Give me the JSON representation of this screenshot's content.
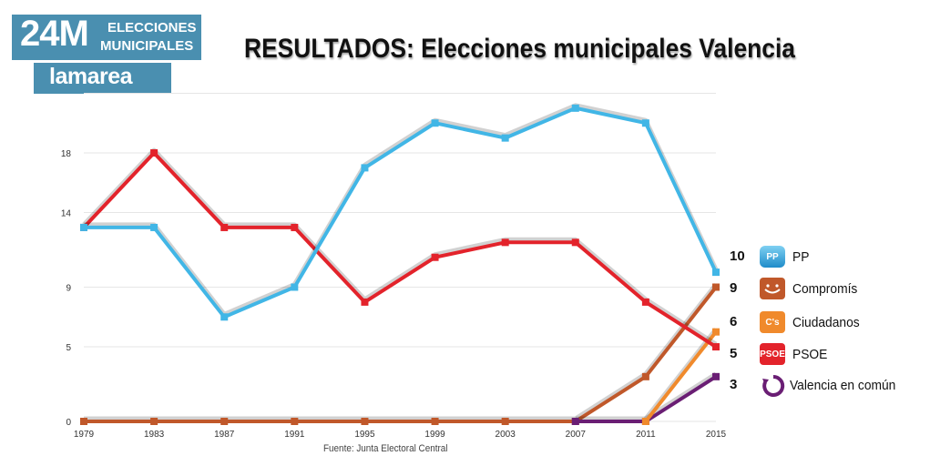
{
  "header": {
    "badge_main": "24M",
    "badge_line1": "ELECCIONES",
    "badge_line2": "MUNICIPALES",
    "brand": "lamarea",
    "title": "RESULTADOS: Elecciones municipales Valencia"
  },
  "source": "Fuente: Junta Electoral Central",
  "legend": [
    {
      "value": "10",
      "label": "PP",
      "logo_text": "PP",
      "color": "#41b6e6"
    },
    {
      "value": "9",
      "label": "Compromís",
      "logo_text": "",
      "color": "#c0582a"
    },
    {
      "value": "6",
      "label": "Ciudadanos",
      "logo_text": "C's",
      "color": "#f08a2c"
    },
    {
      "value": "5",
      "label": "PSOE",
      "logo_text": "PSOE",
      "color": "#e3232b"
    },
    {
      "value": "3",
      "label": "Valencia en común",
      "logo_text": "",
      "color": "#6a1e74"
    }
  ],
  "chart_data": {
    "type": "line",
    "title": "RESULTADOS: Elecciones municipales Valencia",
    "xlabel": "",
    "ylabel": "",
    "categories": [
      "1979",
      "1983",
      "1987",
      "1991",
      "1995",
      "1999",
      "2003",
      "2007",
      "2011",
      "2015"
    ],
    "y_ticks": [
      0,
      5,
      9,
      14,
      18
    ],
    "ylim": [
      0,
      22
    ],
    "grid": true,
    "legend_position": "right",
    "series": [
      {
        "name": "PP",
        "color": "#41b6e6",
        "values": [
          13,
          13,
          7,
          9,
          17,
          20,
          19,
          21,
          20,
          10
        ]
      },
      {
        "name": "PSOE",
        "color": "#e3232b",
        "values": [
          13,
          18,
          13,
          13,
          8,
          11,
          12,
          12,
          8,
          5
        ]
      },
      {
        "name": "Compromís",
        "color": "#c0582a",
        "values": [
          0,
          0,
          0,
          0,
          0,
          0,
          0,
          0,
          3,
          9
        ]
      },
      {
        "name": "Ciudadanos",
        "color": "#f08a2c",
        "values": [
          null,
          null,
          null,
          null,
          null,
          null,
          null,
          null,
          0,
          6
        ]
      },
      {
        "name": "Valencia en común",
        "color": "#6a1e74",
        "values": [
          null,
          null,
          null,
          null,
          null,
          null,
          null,
          0,
          0,
          3
        ]
      }
    ]
  }
}
